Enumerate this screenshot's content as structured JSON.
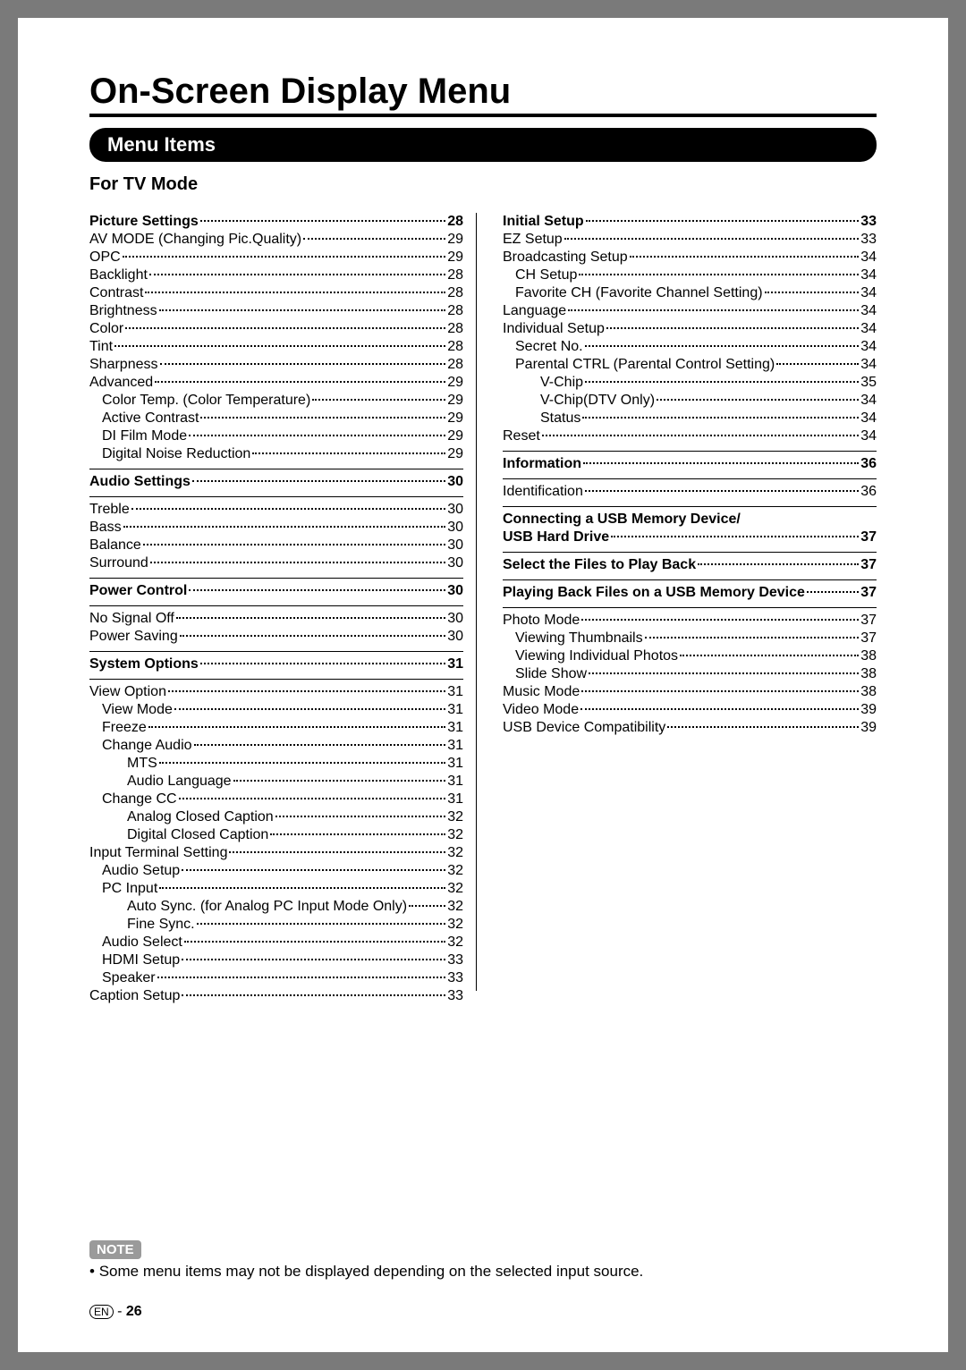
{
  "title": "On-Screen Display Menu",
  "section_header": "Menu Items",
  "subtitle": "For TV Mode",
  "note": {
    "label": "NOTE",
    "text": "Some menu items may not be displayed depending on the selected input source."
  },
  "footer": {
    "lang": "EN",
    "sep": "-",
    "page": "26"
  },
  "left": [
    {
      "t": "Picture Settings",
      "p": "28",
      "b": true,
      "lv": 0,
      "sep_before": false
    },
    {
      "t": "AV MODE (Changing Pic.Quality)",
      "p": "29",
      "lv": 0
    },
    {
      "t": "OPC",
      "p": "29",
      "lv": 0
    },
    {
      "t": "Backlight",
      "p": "28",
      "lv": 0
    },
    {
      "t": "Contrast",
      "p": "28",
      "lv": 0
    },
    {
      "t": "Brightness",
      "p": "28",
      "lv": 0
    },
    {
      "t": "Color",
      "p": "28",
      "lv": 0
    },
    {
      "t": "Tint",
      "p": "28",
      "lv": 0
    },
    {
      "t": "Sharpness",
      "p": "28",
      "lv": 0
    },
    {
      "t": "Advanced",
      "p": "29",
      "lv": 0
    },
    {
      "t": "Color Temp. (Color Temperature)",
      "p": "29",
      "lv": 1
    },
    {
      "t": "Active Contrast",
      "p": "29",
      "lv": 1
    },
    {
      "t": "DI Film Mode",
      "p": "29",
      "lv": 1
    },
    {
      "t": "Digital Noise Reduction",
      "p": "29",
      "lv": 1
    },
    {
      "t": "Audio Settings",
      "p": "30",
      "b": true,
      "lv": 0,
      "sep_before": true
    },
    {
      "t": "Treble",
      "p": "30",
      "lv": 0,
      "sep_before": true
    },
    {
      "t": "Bass",
      "p": "30",
      "lv": 0
    },
    {
      "t": "Balance",
      "p": "30",
      "lv": 0
    },
    {
      "t": "Surround",
      "p": "30",
      "lv": 0
    },
    {
      "t": "Power Control",
      "p": "30",
      "b": true,
      "lv": 0,
      "sep_before": true
    },
    {
      "t": "No Signal Off",
      "p": "30",
      "lv": 0,
      "sep_before": true
    },
    {
      "t": "Power Saving",
      "p": "30",
      "lv": 0
    },
    {
      "t": "System Options",
      "p": "31",
      "b": true,
      "lv": 0,
      "sep_before": true
    },
    {
      "t": "View Option",
      "p": "31",
      "lv": 0,
      "sep_before": true
    },
    {
      "t": "View Mode",
      "p": "31",
      "lv": 1
    },
    {
      "t": "Freeze",
      "p": "31",
      "lv": 1
    },
    {
      "t": "Change Audio",
      "p": "31",
      "lv": 1
    },
    {
      "t": "MTS",
      "p": "31",
      "lv": 2
    },
    {
      "t": "Audio Language",
      "p": "31",
      "lv": 2
    },
    {
      "t": "Change CC",
      "p": "31",
      "lv": 1
    },
    {
      "t": "Analog Closed Caption",
      "p": "32",
      "lv": 2
    },
    {
      "t": "Digital Closed Caption",
      "p": "32",
      "lv": 2
    },
    {
      "t": "Input Terminal Setting",
      "p": "32",
      "lv": 0
    },
    {
      "t": "Audio Setup",
      "p": "32",
      "lv": 1
    },
    {
      "t": "PC Input",
      "p": "32",
      "lv": 1
    },
    {
      "t": "Auto Sync. (for Analog PC Input Mode Only)",
      "p": "32",
      "lv": 2
    },
    {
      "t": "Fine Sync.",
      "p": "32",
      "lv": 2
    },
    {
      "t": "Audio Select",
      "p": "32",
      "lv": 1
    },
    {
      "t": "HDMI Setup",
      "p": "33",
      "lv": 1
    },
    {
      "t": "Speaker",
      "p": "33",
      "lv": 1
    },
    {
      "t": "Caption Setup",
      "p": "33",
      "lv": 0
    }
  ],
  "right": [
    {
      "t": "Initial Setup",
      "p": "33",
      "b": true,
      "lv": 0
    },
    {
      "t": "EZ Setup",
      "p": "33",
      "lv": 0
    },
    {
      "t": "Broadcasting Setup",
      "p": "34",
      "lv": 0
    },
    {
      "t": "CH Setup",
      "p": "34",
      "lv": 1
    },
    {
      "t": "Favorite CH (Favorite Channel Setting)",
      "p": "34",
      "lv": 1
    },
    {
      "t": "Language",
      "p": "34",
      "lv": 0
    },
    {
      "t": "Individual Setup",
      "p": "34",
      "lv": 0
    },
    {
      "t": "Secret No.",
      "p": "34",
      "lv": 1
    },
    {
      "t": "Parental CTRL (Parental Control Setting)",
      "p": "34",
      "lv": 1
    },
    {
      "t": "V-Chip",
      "p": "35",
      "lv": 2
    },
    {
      "t": "V-Chip(DTV Only)",
      "p": "34",
      "lv": 2
    },
    {
      "t": "Status",
      "p": "34",
      "lv": 2
    },
    {
      "t": "Reset",
      "p": "34",
      "lv": 0
    },
    {
      "t": "Information",
      "p": "36",
      "b": true,
      "lv": 0,
      "sep_before": true
    },
    {
      "t": "Identification",
      "p": "36",
      "lv": 0,
      "sep_before": true
    },
    {
      "t": "Connecting a USB Memory Device/",
      "nopage": true,
      "b": true,
      "lv": 0,
      "sep_before": true
    },
    {
      "t": "USB Hard Drive",
      "p": "37",
      "b": true,
      "lv": 0
    },
    {
      "t": "Select the Files to Play Back",
      "p": "37",
      "b": true,
      "lv": 0,
      "sep_before": true
    },
    {
      "t": "Playing Back Files on a USB Memory Device",
      "p": "37",
      "b": true,
      "lv": 0,
      "sep_before": true
    },
    {
      "t": "Photo Mode",
      "p": "37",
      "lv": 0,
      "sep_before": true
    },
    {
      "t": "Viewing Thumbnails",
      "p": "37",
      "lv": 1
    },
    {
      "t": "Viewing Individual Photos",
      "p": "38",
      "lv": 1
    },
    {
      "t": "Slide Show",
      "p": "38",
      "lv": 1
    },
    {
      "t": "Music Mode",
      "p": "38",
      "lv": 0
    },
    {
      "t": "Video Mode",
      "p": "39",
      "lv": 0
    },
    {
      "t": "USB Device Compatibility",
      "p": "39",
      "lv": 0
    }
  ]
}
